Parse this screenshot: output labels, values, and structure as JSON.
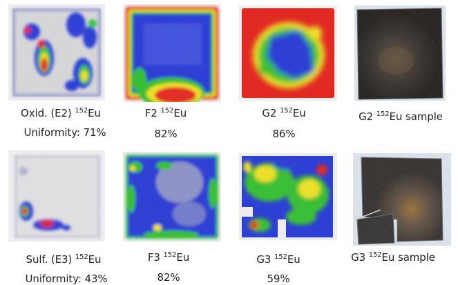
{
  "rows": [
    {
      "panels": [
        {
          "line1_pre": "Oxid. (E2) ",
          "isotope_mass": "152",
          "isotope_symbol": "Eu",
          "line2": "Uniformity: 71%"
        },
        {
          "line1_pre": "F2 ",
          "isotope_mass": "152",
          "isotope_symbol": "Eu",
          "line2": "82%"
        },
        {
          "line1_pre": "G2 ",
          "isotope_mass": "152",
          "isotope_symbol": "Eu",
          "line2": "86%"
        },
        {
          "line1_pre": "G2 ",
          "isotope_mass": "152",
          "isotope_symbol": "Eu",
          "line1_post": " sample"
        }
      ]
    },
    {
      "panels": [
        {
          "line1_pre": "Sulf. (E3) ",
          "isotope_mass": "152",
          "isotope_symbol": "Eu",
          "line2": "Uniformity: 43%"
        },
        {
          "line1_pre": "F3 ",
          "isotope_mass": "152",
          "isotope_symbol": "Eu",
          "line2": "82%"
        },
        {
          "line1_pre": "G3 ",
          "isotope_mass": "152",
          "isotope_symbol": "Eu",
          "line2": "59%"
        },
        {
          "line1_pre": "G3 ",
          "isotope_mass": "152",
          "isotope_symbol": "Eu",
          "line1_post": " sample"
        }
      ]
    }
  ],
  "colormap": {
    "low": "#f2f2f2",
    "blue": "#1a2fd6",
    "green": "#2fbf2a",
    "yellow": "#f2e81c",
    "red": "#e8201a"
  }
}
